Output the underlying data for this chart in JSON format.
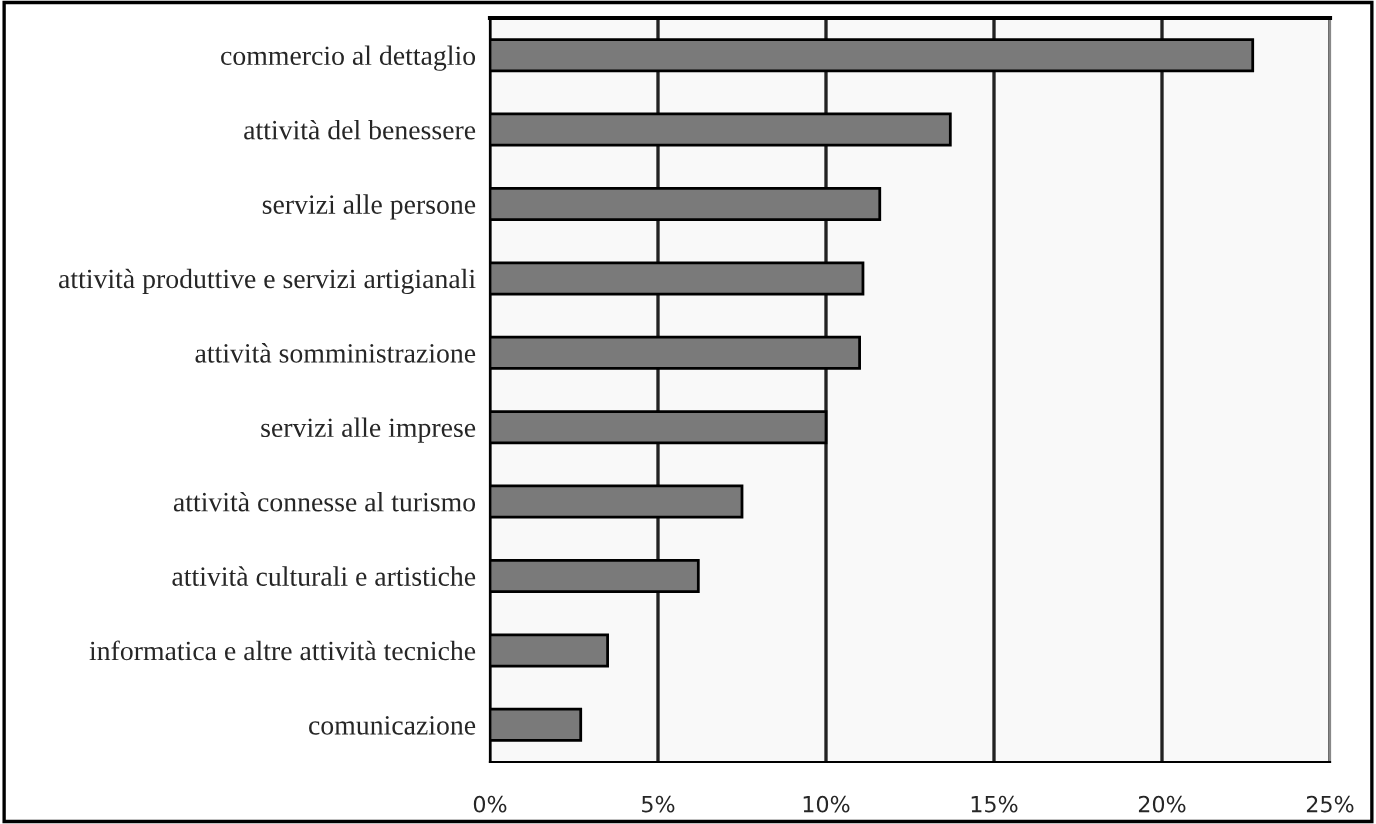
{
  "chart_data": {
    "type": "bar",
    "orientation": "horizontal",
    "categories": [
      "commercio al dettaglio",
      "attività del benessere",
      "servizi alle persone",
      "attività produttive e servizi artigianali",
      "attività somministrazione",
      "servizi alle imprese",
      "attività connesse al turismo",
      "attività culturali e artistiche",
      "informatica e altre attività tecniche",
      "comunicazione"
    ],
    "values": [
      22.7,
      13.7,
      11.6,
      11.1,
      11.0,
      10.0,
      7.5,
      6.2,
      3.5,
      2.7
    ],
    "color": "#7a7a7a",
    "xlim": [
      0,
      25
    ],
    "xticks": [
      {
        "value": 0,
        "label": "0%"
      },
      {
        "value": 5,
        "label": "5%"
      },
      {
        "value": 10,
        "label": "10%"
      },
      {
        "value": 15,
        "label": "15%"
      },
      {
        "value": 20,
        "label": "20%"
      },
      {
        "value": 25,
        "label": "25%"
      }
    ],
    "grid": "x",
    "legend": false
  }
}
